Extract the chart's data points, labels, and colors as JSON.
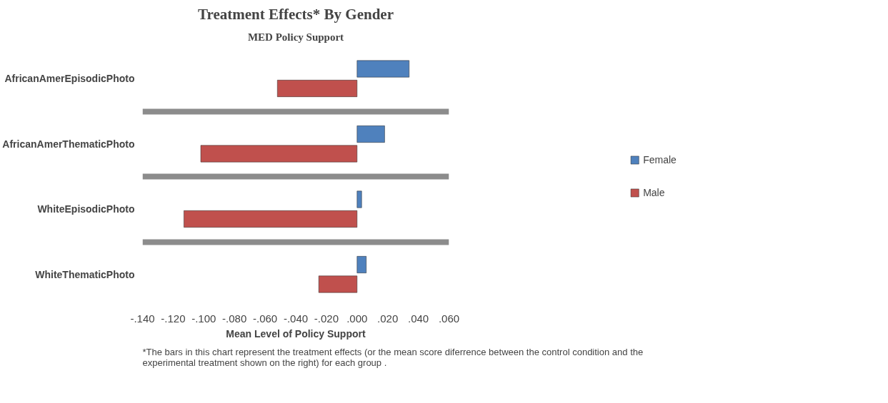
{
  "chart_data": {
    "type": "bar",
    "orientation": "horizontal",
    "title": "Treatment Effects* By Gender",
    "subtitle": "MED Policy Support",
    "xlabel": "Mean Level of Policy Support",
    "categories": [
      "AfricanAmerEpisodicPhoto",
      "AfricanAmerThematicPhoto",
      "WhiteEpisodicPhoto",
      "WhiteThematicPhoto"
    ],
    "series": [
      {
        "name": "Female",
        "color": "#4f81bd",
        "values": [
          0.034,
          0.018,
          0.003,
          0.006
        ]
      },
      {
        "name": "Male",
        "color": "#c0504d",
        "values": [
          -0.052,
          -0.102,
          -0.113,
          -0.025
        ]
      }
    ],
    "xlim": [
      -0.14,
      0.06
    ],
    "xticks": [
      {
        "value": -0.14,
        "label": "-.140"
      },
      {
        "value": -0.12,
        "label": "-.120"
      },
      {
        "value": -0.1,
        "label": "-.100"
      },
      {
        "value": -0.08,
        "label": "-.080"
      },
      {
        "value": -0.06,
        "label": "-.060"
      },
      {
        "value": -0.04,
        "label": "-.040"
      },
      {
        "value": -0.02,
        "label": "-.020"
      },
      {
        "value": 0,
        "label": ".000"
      },
      {
        "value": 0.02,
        "label": ".020"
      },
      {
        "value": 0.04,
        "label": ".040"
      },
      {
        "value": 0.06,
        "label": ".060"
      }
    ],
    "grid": "y",
    "legend": "right",
    "annotations": [
      "*The bars in this chart represent the treatment effects  (or the mean score diferrence between the control condition and the experimental treatment shown on the right) for each group ."
    ]
  }
}
